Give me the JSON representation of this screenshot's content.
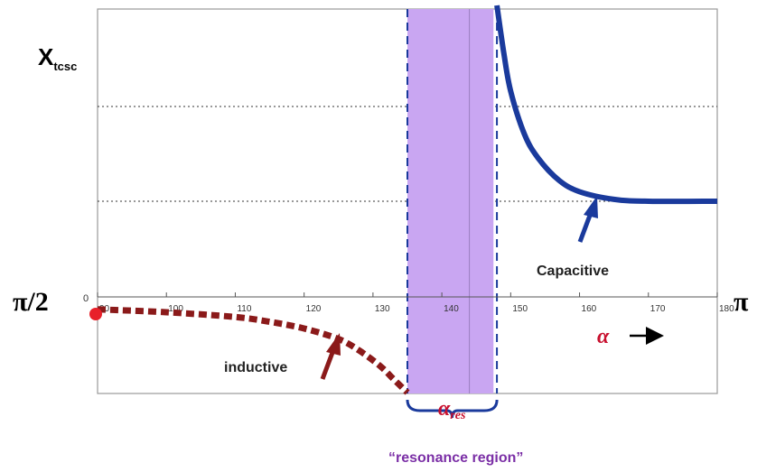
{
  "chart_data": {
    "type": "line",
    "y_axis_label_main": "X",
    "y_axis_label_sub": "tcsc",
    "y_zero_label": "0",
    "left_end_label": "π/2",
    "right_end_label": "π",
    "x_axis_symbol": "α",
    "x_ticks": [
      "90",
      "100",
      "110",
      "120",
      "130",
      "140",
      "150",
      "160",
      "170",
      "180"
    ],
    "xlim": [
      90,
      180
    ],
    "grid": "horizontal dotted",
    "resonance_band": [
      135,
      147.5
    ],
    "resonance_marker": 144,
    "resonance_label_main": "α",
    "resonance_label_sub": "res",
    "resonance_region_label": "“resonance region”",
    "series": [
      {
        "name": "inductive",
        "style": "dashed",
        "color": "#8b1a1a",
        "x": [
          90,
          100,
          110,
          115,
          120,
          125,
          128,
          131,
          133,
          135
        ],
        "y": [
          -0.13,
          -0.16,
          -0.21,
          -0.26,
          -0.33,
          -0.44,
          -0.56,
          -0.72,
          -0.86,
          -1.0
        ]
      },
      {
        "name": "Capacitive",
        "style": "solid",
        "color": "#1a3a9c",
        "x": [
          148,
          149,
          150,
          152,
          154,
          157,
          160,
          165,
          170,
          180
        ],
        "y": [
          3.15,
          2.55,
          2.15,
          1.7,
          1.45,
          1.22,
          1.1,
          1.02,
          1.0,
          1.0
        ]
      }
    ],
    "annotation_inductive": "inductive",
    "annotation_capacitive": "Capacitive",
    "colors": {
      "inductive": "#8b1a1a",
      "capacitive": "#1a3a9c",
      "band": "#c9a6f2",
      "alpha_label": "#c8102e",
      "region_label": "#7b2fa6",
      "start_dot": "#e8202a"
    }
  }
}
